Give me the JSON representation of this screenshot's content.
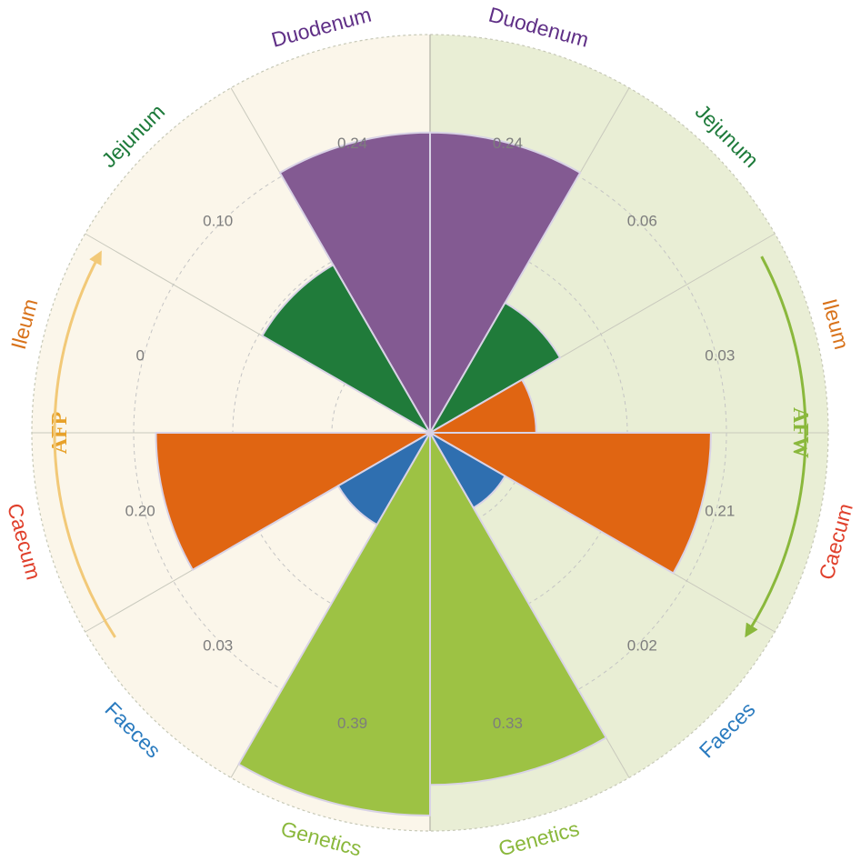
{
  "chart_data": {
    "type": "polar-bar",
    "colors": {
      "Genetics": "#9dc244",
      "Duodenum": "#835a92",
      "Jejunum": "#207b3a",
      "Ileum": "#e06512",
      "Caecum": "#e06512",
      "Faeces": "#2f6fb0"
    },
    "label_colors": {
      "Genetics": "#8ab83c",
      "Duodenum": "#5f2f86",
      "Jejunum": "#1d7a3a",
      "Ileum": "#d8721a",
      "Caecum": "#e0402c",
      "Faeces": "#2a7bbf"
    },
    "rmax": 0.39,
    "groups": [
      {
        "name": "AFW",
        "side": "right",
        "color": "#8ab83c",
        "background": "#e9eed5",
        "categories": [
          "Duodenum",
          "Jejunum",
          "Ileum",
          "Caecum",
          "Faeces",
          "Genetics"
        ],
        "values": [
          0.24,
          0.06,
          0.03,
          0.21,
          0.02,
          0.33
        ],
        "value_labels": [
          "0.24",
          "0.06",
          "0.03",
          "0.21",
          "0.02",
          "0.33"
        ]
      },
      {
        "name": "AFP",
        "side": "left",
        "color": "#e7a12a",
        "background": "#fbf6ea",
        "categories": [
          "Duodenum",
          "Jejunum",
          "Ileum",
          "Caecum",
          "Faeces",
          "Genetics"
        ],
        "values": [
          0.24,
          0.1,
          0.0,
          0.2,
          0.03,
          0.39
        ],
        "value_labels": [
          "0.24",
          "0.10",
          "0",
          "0.20",
          "0.03",
          "0.39"
        ]
      }
    ]
  }
}
